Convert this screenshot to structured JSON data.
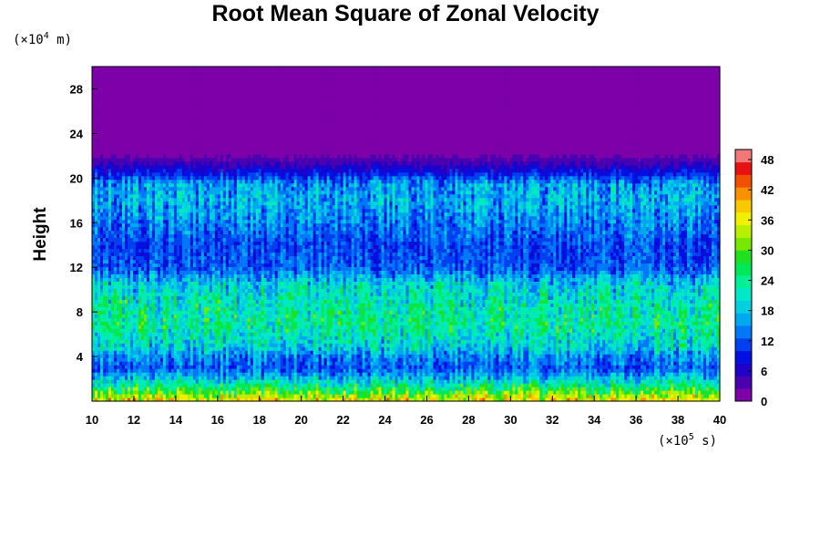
{
  "chart_data": {
    "type": "heatmap",
    "title": "Root Mean Square of Zonal Velocity",
    "ylabel": "Height",
    "y_unit": {
      "prefix": "(×10",
      "exp": "4",
      "suffix": " m)"
    },
    "x_unit": {
      "prefix": "(×10",
      "exp": "5",
      "suffix": " s)"
    },
    "xlim": [
      10,
      40
    ],
    "ylim": [
      0,
      30
    ],
    "x_ticks": [
      "10",
      "12",
      "14",
      "16",
      "18",
      "20",
      "22",
      "24",
      "26",
      "28",
      "30",
      "32",
      "34",
      "36",
      "38",
      "40"
    ],
    "y_ticks": [
      "4",
      "8",
      "12",
      "16",
      "20",
      "24",
      "28"
    ],
    "colorbar": {
      "range": [
        0,
        50
      ],
      "ticks": [
        "0",
        "6",
        "12",
        "18",
        "24",
        "30",
        "36",
        "42",
        "48"
      ],
      "colors": [
        "#7d00a8",
        "#4b00b0",
        "#1e00c8",
        "#0010e0",
        "#0040f0",
        "#0078f8",
        "#00a8f0",
        "#00d0e0",
        "#00e8c8",
        "#00f098",
        "#00e858",
        "#20e020",
        "#78e800",
        "#b8f000",
        "#f0f000",
        "#f8c800",
        "#f89000",
        "#f05000",
        "#e81010",
        "#f07878"
      ]
    },
    "height_profile_rms": [
      {
        "height": 0.2,
        "value": 36
      },
      {
        "height": 1,
        "value": 28
      },
      {
        "height": 2,
        "value": 19
      },
      {
        "height": 3,
        "value": 12
      },
      {
        "height": 4,
        "value": 15
      },
      {
        "height": 5,
        "value": 20
      },
      {
        "height": 7,
        "value": 24
      },
      {
        "height": 9,
        "value": 22
      },
      {
        "height": 10.5,
        "value": 19
      },
      {
        "height": 12,
        "value": 12
      },
      {
        "height": 14,
        "value": 11
      },
      {
        "height": 16,
        "value": 14
      },
      {
        "height": 18,
        "value": 17
      },
      {
        "height": 19.5,
        "value": 16
      },
      {
        "height": 20.5,
        "value": 9
      },
      {
        "height": 21.5,
        "value": 4
      },
      {
        "height": 22.5,
        "value": 1
      },
      {
        "height": 23.5,
        "value": 0
      },
      {
        "height": 30,
        "value": 0
      }
    ]
  }
}
